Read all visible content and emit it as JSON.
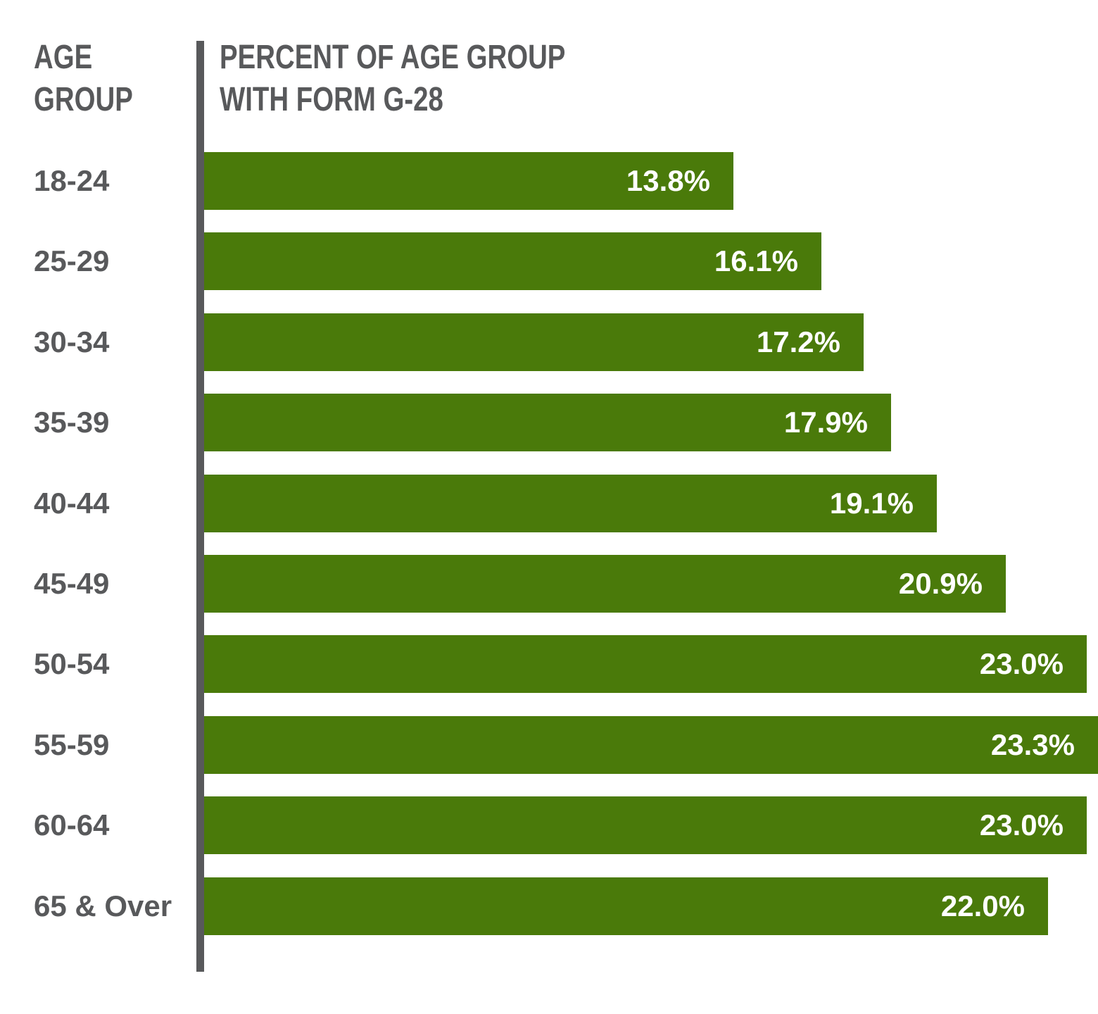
{
  "header": {
    "left_title": "AGE\nGROUP",
    "right_title": "PERCENT OF AGE GROUP\nWITH FORM G-28"
  },
  "chart_data": {
    "type": "bar",
    "orientation": "horizontal",
    "title": "Percent of Age Group with Form G-28",
    "xlabel": "Percent of age group with Form G-28",
    "ylabel": "Age group",
    "categories": [
      "18-24",
      "25-29",
      "30-34",
      "35-39",
      "40-44",
      "45-49",
      "50-54",
      "55-59",
      "60-64",
      "65 & Over"
    ],
    "values": [
      13.8,
      16.1,
      17.2,
      17.9,
      19.1,
      20.9,
      23.0,
      23.3,
      23.0,
      22.0
    ],
    "value_labels": [
      "13.8%",
      "16.1%",
      "17.2%",
      "17.9%",
      "19.1%",
      "20.9%",
      "23.0%",
      "23.3%",
      "23.0%",
      "22.0%"
    ],
    "xlim": [
      0,
      23.3
    ],
    "grid": false,
    "legend_position": "none",
    "bar_color": "#4a7a0a",
    "axis_color": "#58595b",
    "category_label_color": "#58595b",
    "value_label_color": "#ffffff",
    "background_color": "#ffffff"
  }
}
